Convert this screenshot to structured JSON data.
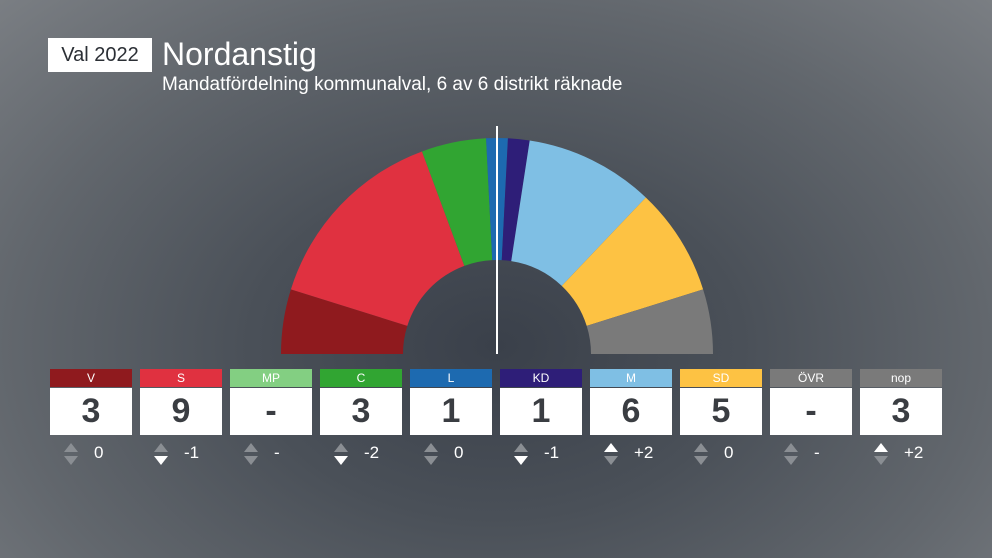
{
  "header": {
    "badge": "Val 2022",
    "title": "Nordanstig",
    "subtitle": "Mandatfördelning kommunalval, 6 av 6 distrikt räknade"
  },
  "chart_data": {
    "type": "parliament-hemicycle",
    "total_seats": 31,
    "parties": [
      {
        "code": "V",
        "seats": 3,
        "seats_label": "3",
        "change": 0,
        "change_label": "0",
        "direction": "none",
        "color": "#8f1a1e"
      },
      {
        "code": "S",
        "seats": 9,
        "seats_label": "9",
        "change": -1,
        "change_label": "-1",
        "direction": "down",
        "color": "#e03140"
      },
      {
        "code": "MP",
        "seats": 0,
        "seats_label": "-",
        "change": null,
        "change_label": "-",
        "direction": "none",
        "color": "#83cf82"
      },
      {
        "code": "C",
        "seats": 3,
        "seats_label": "3",
        "change": -2,
        "change_label": "-2",
        "direction": "down",
        "color": "#31a532"
      },
      {
        "code": "L",
        "seats": 1,
        "seats_label": "1",
        "change": 0,
        "change_label": "0",
        "direction": "none",
        "color": "#1d6ab0"
      },
      {
        "code": "KD",
        "seats": 1,
        "seats_label": "1",
        "change": -1,
        "change_label": "-1",
        "direction": "down",
        "color": "#2e1e78"
      },
      {
        "code": "M",
        "seats": 6,
        "seats_label": "6",
        "change": 2,
        "change_label": "+2",
        "direction": "up",
        "color": "#7fbfe4"
      },
      {
        "code": "SD",
        "seats": 5,
        "seats_label": "5",
        "change": 0,
        "change_label": "0",
        "direction": "none",
        "color": "#fdc243"
      },
      {
        "code": "ÖVR",
        "seats": 0,
        "seats_label": "-",
        "change": null,
        "change_label": "-",
        "direction": "none",
        "color": "#7a7a7a"
      },
      {
        "code": "nop",
        "seats": 3,
        "seats_label": "3",
        "change": 2,
        "change_label": "+2",
        "direction": "up",
        "color": "#7a7a7a"
      }
    ]
  }
}
